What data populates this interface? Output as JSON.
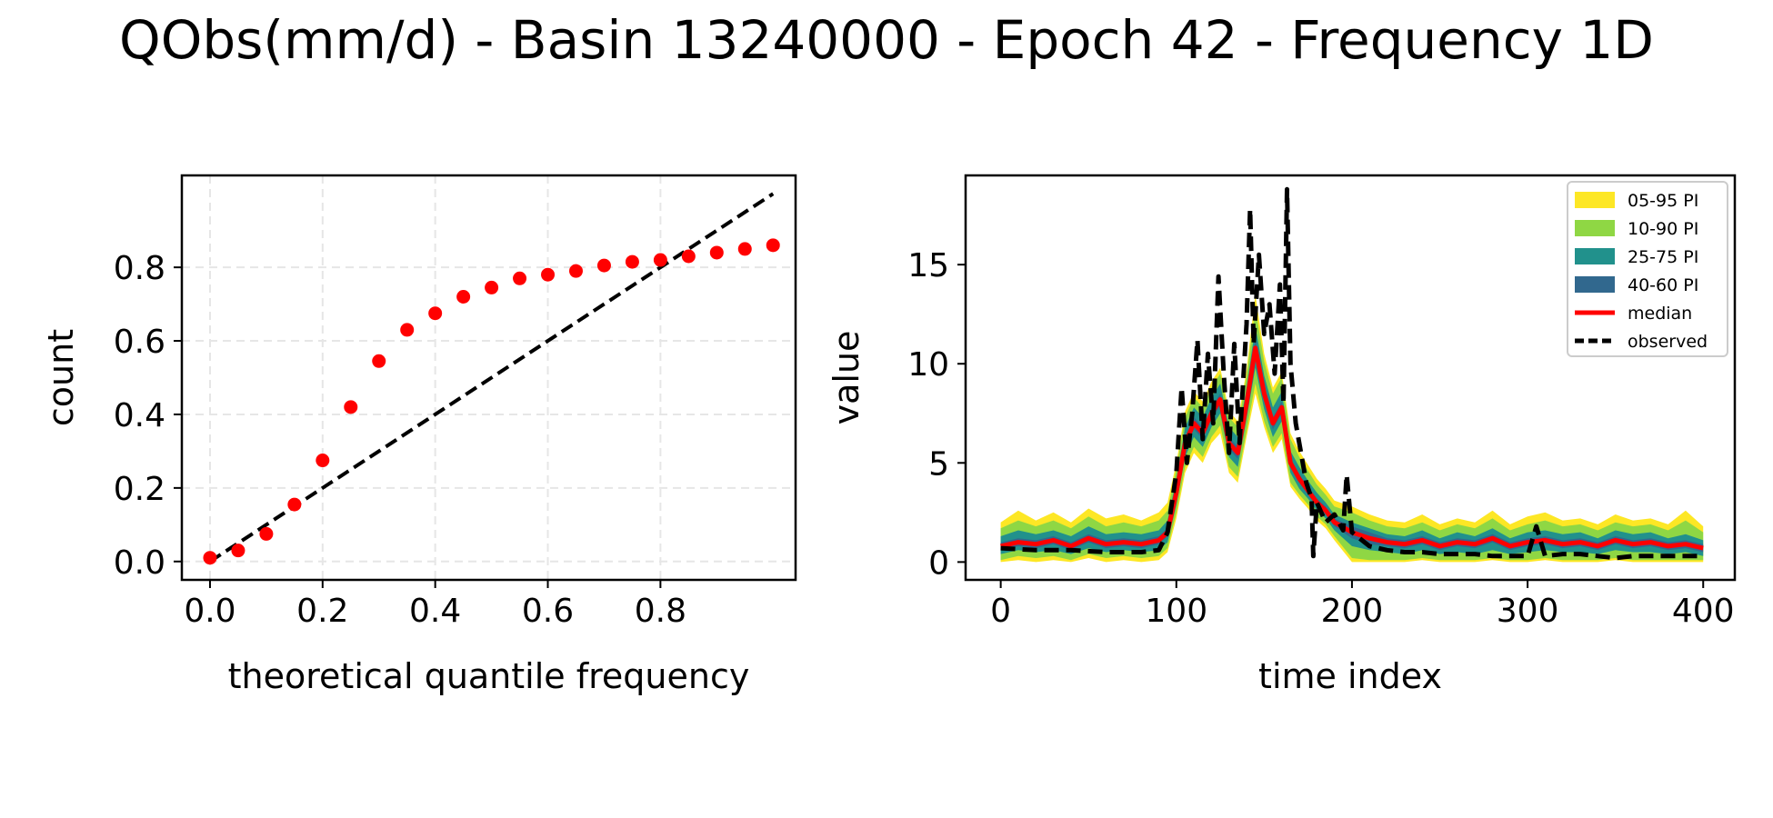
{
  "title": "QObs(mm/d) - Basin 13240000 - Epoch 42 - Frequency 1D",
  "chart_data": [
    {
      "type": "scatter",
      "xlabel": "theoretical quantile frequency",
      "ylabel": "count",
      "xlim": [
        -0.05,
        1.04
      ],
      "ylim": [
        -0.05,
        1.05
      ],
      "xticks": [
        "0.0",
        "0.2",
        "0.4",
        "0.6",
        "0.8"
      ],
      "xtick_values": [
        0.0,
        0.2,
        0.4,
        0.6,
        0.8
      ],
      "yticks": [
        "0.0",
        "0.2",
        "0.4",
        "0.6",
        "0.8"
      ],
      "ytick_values": [
        0.0,
        0.2,
        0.4,
        0.6,
        0.8
      ],
      "grid": true,
      "reference_line": {
        "x": [
          0.0,
          1.0
        ],
        "y": [
          0.0,
          1.0
        ],
        "style": "dashed",
        "color": "#000000"
      },
      "series": [
        {
          "color": "#ff0000",
          "x": [
            0.0,
            0.05,
            0.1,
            0.15,
            0.2,
            0.25,
            0.3,
            0.35,
            0.4,
            0.45,
            0.5,
            0.55,
            0.6,
            0.65,
            0.7,
            0.75,
            0.8,
            0.85,
            0.9,
            0.95,
            1.0
          ],
          "y": [
            0.01,
            0.03,
            0.075,
            0.155,
            0.275,
            0.42,
            0.545,
            0.63,
            0.675,
            0.72,
            0.745,
            0.77,
            0.78,
            0.79,
            0.805,
            0.815,
            0.82,
            0.83,
            0.84,
            0.85,
            0.86
          ]
        }
      ]
    },
    {
      "type": "area",
      "xlabel": "time index",
      "ylabel": "value",
      "xlim": [
        -20,
        418
      ],
      "ylim": [
        -0.9,
        19.5
      ],
      "xticks": [
        "0",
        "100",
        "200",
        "300",
        "400"
      ],
      "xtick_values": [
        0,
        100,
        200,
        300,
        400
      ],
      "yticks": [
        "0",
        "5",
        "10",
        "15"
      ],
      "ytick_values": [
        0,
        5,
        10,
        15
      ],
      "grid": false,
      "legend_position": "top-right",
      "legend": [
        {
          "label": "05-95 PI",
          "color": "#fde725",
          "kind": "patch"
        },
        {
          "label": "10-90 PI",
          "color": "#8fd744",
          "kind": "patch"
        },
        {
          "label": "25-75 PI",
          "color": "#21918c",
          "kind": "patch"
        },
        {
          "label": "40-60 PI",
          "color": "#31688e",
          "kind": "patch"
        },
        {
          "label": "median",
          "color": "#ff0000",
          "kind": "line"
        },
        {
          "label": "observed",
          "color": "#000000",
          "kind": "dashed"
        }
      ],
      "median": {
        "x": [
          0,
          10,
          20,
          30,
          40,
          50,
          60,
          70,
          80,
          90,
          95,
          100,
          105,
          110,
          115,
          120,
          125,
          130,
          135,
          140,
          145,
          150,
          155,
          160,
          165,
          170,
          175,
          180,
          185,
          190,
          200,
          210,
          220,
          230,
          240,
          250,
          260,
          270,
          280,
          290,
          300,
          310,
          320,
          330,
          340,
          350,
          360,
          370,
          380,
          390,
          400
        ],
        "y": [
          0.8,
          1.0,
          0.9,
          1.1,
          0.8,
          1.2,
          0.9,
          1.0,
          0.9,
          1.1,
          1.5,
          3.5,
          6.0,
          7.0,
          6.5,
          7.5,
          8.2,
          6.0,
          5.5,
          8.0,
          10.8,
          8.5,
          7.0,
          7.8,
          5.0,
          4.2,
          3.6,
          3.0,
          2.6,
          2.0,
          1.5,
          1.2,
          1.0,
          0.9,
          1.1,
          0.8,
          1.0,
          0.9,
          1.2,
          0.8,
          1.0,
          1.1,
          0.9,
          1.0,
          0.8,
          1.1,
          0.9,
          1.0,
          0.8,
          0.9,
          0.7
        ]
      },
      "bands": [
        {
          "name": "05-95 PI",
          "color": "#fde725",
          "lower": [
            0.0,
            0.1,
            0.0,
            0.1,
            0.0,
            0.2,
            0.0,
            0.1,
            0.0,
            0.1,
            0.5,
            2.2,
            4.5,
            5.5,
            5.0,
            6.0,
            6.5,
            4.5,
            4.0,
            6.3,
            8.5,
            6.8,
            5.5,
            6.2,
            3.8,
            3.2,
            2.7,
            2.1,
            1.7,
            1.1,
            0.0,
            0.0,
            0.0,
            0.0,
            0.1,
            0.0,
            0.0,
            0.0,
            0.1,
            0.0,
            0.0,
            0.1,
            0.0,
            0.0,
            0.0,
            0.1,
            0.0,
            0.0,
            0.0,
            0.0,
            0.0
          ],
          "upper": [
            2.0,
            2.6,
            2.1,
            2.5,
            2.0,
            2.7,
            2.2,
            2.4,
            2.1,
            2.5,
            3.0,
            5.0,
            7.6,
            8.6,
            8.1,
            9.1,
            9.8,
            7.6,
            7.1,
            9.7,
            13.5,
            10.5,
            8.8,
            9.6,
            6.5,
            5.6,
            4.9,
            4.2,
            3.7,
            3.1,
            2.8,
            2.4,
            2.1,
            2.0,
            2.4,
            1.9,
            2.2,
            2.0,
            2.6,
            1.9,
            2.3,
            2.5,
            2.1,
            2.2,
            1.9,
            2.4,
            2.1,
            2.2,
            1.9,
            2.6,
            1.8
          ]
        },
        {
          "name": "10-90 PI",
          "color": "#8fd744",
          "lower": [
            0.1,
            0.3,
            0.2,
            0.3,
            0.1,
            0.4,
            0.2,
            0.3,
            0.2,
            0.3,
            0.7,
            2.5,
            4.8,
            5.8,
            5.3,
            6.3,
            6.9,
            4.8,
            4.3,
            6.6,
            9.0,
            7.1,
            5.8,
            6.5,
            4.0,
            3.4,
            2.9,
            2.3,
            1.9,
            1.3,
            0.2,
            0.1,
            0.1,
            0.1,
            0.2,
            0.1,
            0.1,
            0.1,
            0.2,
            0.1,
            0.1,
            0.2,
            0.1,
            0.1,
            0.1,
            0.2,
            0.1,
            0.1,
            0.1,
            0.1,
            0.1
          ],
          "upper": [
            1.7,
            2.1,
            1.8,
            2.1,
            1.7,
            2.3,
            1.8,
            2.0,
            1.8,
            2.1,
            2.6,
            4.7,
            7.3,
            8.3,
            7.8,
            8.8,
            9.5,
            7.3,
            6.8,
            9.4,
            12.8,
            10.1,
            8.5,
            9.3,
            6.2,
            5.3,
            4.6,
            3.9,
            3.4,
            2.8,
            2.5,
            2.1,
            1.8,
            1.7,
            2.0,
            1.6,
            1.9,
            1.7,
            2.2,
            1.6,
            1.9,
            2.1,
            1.8,
            1.9,
            1.6,
            2.0,
            1.8,
            1.9,
            1.6,
            2.1,
            1.5
          ]
        },
        {
          "name": "25-75 PI",
          "color": "#21918c",
          "lower": [
            0.4,
            0.6,
            0.5,
            0.6,
            0.4,
            0.7,
            0.5,
            0.6,
            0.5,
            0.6,
            1.0,
            2.9,
            5.3,
            6.3,
            5.8,
            6.8,
            7.5,
            5.3,
            4.8,
            7.2,
            9.8,
            7.7,
            6.3,
            7.1,
            4.5,
            3.7,
            3.2,
            2.6,
            2.2,
            1.6,
            0.8,
            0.6,
            0.5,
            0.4,
            0.6,
            0.4,
            0.5,
            0.4,
            0.6,
            0.4,
            0.5,
            0.6,
            0.5,
            0.5,
            0.4,
            0.6,
            0.5,
            0.5,
            0.4,
            0.5,
            0.3
          ],
          "upper": [
            1.3,
            1.6,
            1.4,
            1.6,
            1.3,
            1.8,
            1.4,
            1.5,
            1.4,
            1.6,
            2.1,
            4.2,
            6.8,
            7.8,
            7.3,
            8.3,
            9.0,
            6.8,
            6.3,
            8.8,
            11.9,
            9.4,
            7.8,
            8.6,
            5.6,
            4.8,
            4.1,
            3.5,
            3.0,
            2.4,
            2.0,
            1.7,
            1.4,
            1.3,
            1.6,
            1.2,
            1.5,
            1.3,
            1.7,
            1.2,
            1.5,
            1.6,
            1.4,
            1.5,
            1.2,
            1.6,
            1.4,
            1.5,
            1.2,
            1.4,
            1.1
          ]
        },
        {
          "name": "40-60 PI",
          "color": "#31688e",
          "lower": [
            0.6,
            0.8,
            0.7,
            0.9,
            0.6,
            1.0,
            0.7,
            0.8,
            0.7,
            0.9,
            1.3,
            3.2,
            5.7,
            6.7,
            6.2,
            7.2,
            7.9,
            5.7,
            5.2,
            7.7,
            10.3,
            8.1,
            6.7,
            7.5,
            4.8,
            4.0,
            3.4,
            2.8,
            2.4,
            1.8,
            1.2,
            0.9,
            0.8,
            0.7,
            0.9,
            0.6,
            0.8,
            0.7,
            1.0,
            0.6,
            0.8,
            0.9,
            0.7,
            0.8,
            0.6,
            0.9,
            0.7,
            0.8,
            0.6,
            0.7,
            0.5
          ],
          "upper": [
            1.0,
            1.2,
            1.1,
            1.3,
            1.0,
            1.4,
            1.1,
            1.2,
            1.1,
            1.3,
            1.7,
            3.8,
            6.3,
            7.3,
            6.8,
            7.8,
            8.5,
            6.3,
            5.8,
            8.3,
            11.3,
            8.9,
            7.3,
            8.1,
            5.2,
            4.4,
            3.8,
            3.2,
            2.8,
            2.2,
            1.8,
            1.5,
            1.2,
            1.1,
            1.3,
            1.0,
            1.2,
            1.1,
            1.4,
            1.0,
            1.2,
            1.3,
            1.1,
            1.2,
            1.0,
            1.3,
            1.1,
            1.2,
            1.0,
            1.1,
            0.9
          ]
        }
      ],
      "observed": {
        "x": [
          0,
          20,
          40,
          60,
          80,
          90,
          95,
          100,
          103,
          106,
          109,
          112,
          115,
          118,
          121,
          124,
          127,
          130,
          133,
          136,
          140,
          142,
          144,
          147,
          150,
          153,
          156,
          159,
          161,
          163,
          165,
          168,
          171,
          174,
          177,
          178,
          180,
          185,
          190,
          195,
          197,
          200,
          210,
          220,
          230,
          240,
          250,
          260,
          270,
          280,
          290,
          300,
          305,
          310,
          320,
          330,
          340,
          350,
          360,
          370,
          380,
          390,
          400
        ],
        "y": [
          0.7,
          0.6,
          0.6,
          0.5,
          0.5,
          0.6,
          1.5,
          4.5,
          8.8,
          5.0,
          7.5,
          11.2,
          6.2,
          10.5,
          7.0,
          14.4,
          9.5,
          5.5,
          11.0,
          6.0,
          12.0,
          17.8,
          11.0,
          15.5,
          11.5,
          13.0,
          9.5,
          14.0,
          8.0,
          18.8,
          10.0,
          7.0,
          5.5,
          4.0,
          3.2,
          0.3,
          3.0,
          2.0,
          2.4,
          1.6,
          4.4,
          1.5,
          0.8,
          0.6,
          0.5,
          0.5,
          0.4,
          0.4,
          0.4,
          0.3,
          0.3,
          0.3,
          1.8,
          0.3,
          0.4,
          0.4,
          0.3,
          0.2,
          0.3,
          0.3,
          0.3,
          0.3,
          0.3
        ]
      }
    }
  ]
}
